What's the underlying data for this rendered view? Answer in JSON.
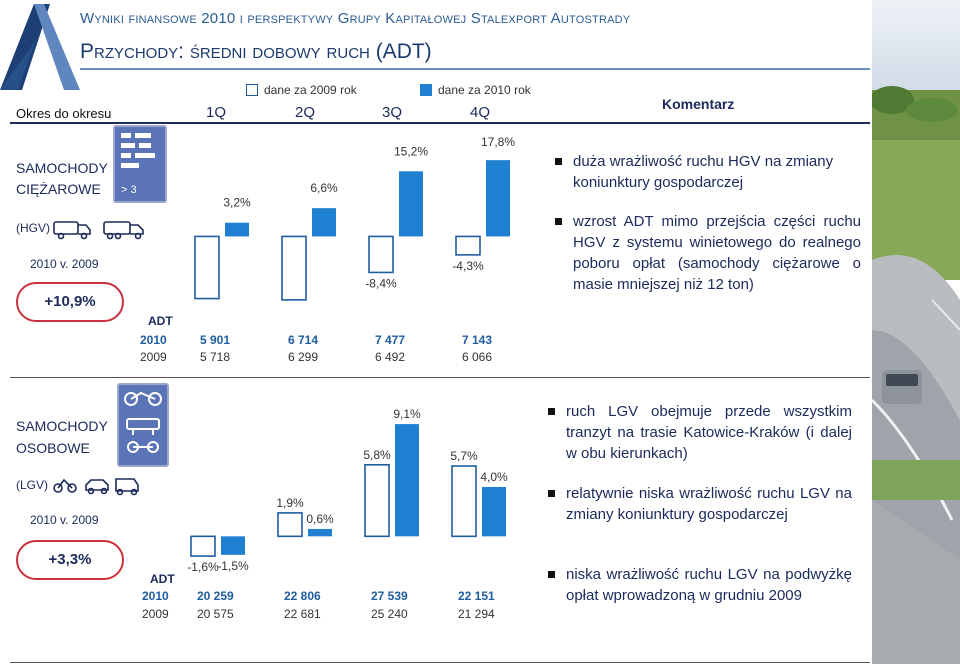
{
  "header": {
    "title_line1": "Wyniki finansowe 2010 i perspektywy Grupy Kapitałowej Stalexport Autostrady",
    "title_line2": "Przychody: średni dobowy ruch (ADT)"
  },
  "legend": {
    "label_2009": "dane za 2009 rok",
    "label_2010": "dane za 2010 rok",
    "color_2009": "#ffffff",
    "color_2010": "#1f7fd0"
  },
  "table_header": {
    "period_label": "Okres do okresu",
    "quarters": [
      "1Q",
      "2Q",
      "3Q",
      "4Q"
    ],
    "comment_label": "Komentarz"
  },
  "hgv": {
    "name_line1": "SAMOCHODY",
    "name_line2": "CIĘŻAROWE",
    "code": "(HGV)",
    "compare": "2010 v. 2009",
    "change": "+10,9%",
    "icon_text": "> 3",
    "adt_label": "ADT",
    "year_2010": "2010",
    "year_2009": "2009",
    "values_2010": [
      "5 901",
      "6 714",
      "7 477",
      "7 143"
    ],
    "values_2009": [
      "5 718",
      "6 299",
      "6 492",
      "6 066"
    ],
    "comments": [
      "duża wrażliwość ruchu HGV na zmiany koniunktury gospodarczej",
      "wzrost ADT mimo przejścia części ruchu HGV z systemu winietowego do realnego poboru opłat (samochody ciężarowe o masie mniejszej niż 12 ton)"
    ]
  },
  "lgv": {
    "name_line1": "SAMOCHODY",
    "name_line2": "OSOBOWE",
    "code": "(LGV)",
    "compare": "2010 v. 2009",
    "change": "+3,3%",
    "adt_label": "ADT",
    "year_2010": "2010",
    "year_2009": "2009",
    "values_2010": [
      "20 259",
      "22 806",
      "27 539",
      "22 151"
    ],
    "values_2009": [
      "20 575",
      "22 681",
      "25 240",
      "21 294"
    ],
    "comments": [
      "ruch LGV obejmuje przede wszystkim tranzyt na trasie Katowice-Kraków (i dalej w obu kierunkach)",
      "relatywnie niska wrażliwość ruchu LGV na zmiany koniunktury gospodarczej",
      "niska wrażliwość ruchu LGV na podwyżkę opłat wprowadzoną w grudniu 2009"
    ]
  },
  "chart_data": [
    {
      "type": "bar",
      "categories": [
        "1Q",
        "2Q",
        "3Q",
        "4Q"
      ],
      "series": [
        {
          "name": "dane za 2009 rok",
          "values": [
            -14.5,
            -14.8,
            -8.4,
            -4.3
          ],
          "labels": [
            "-14,5%",
            "-14,8%",
            "-8,4%",
            "-4,3%"
          ]
        },
        {
          "name": "dane za 2010 rok",
          "values": [
            3.2,
            6.6,
            15.2,
            17.8
          ],
          "labels": [
            "3,2%",
            "6,6%",
            "15,2%",
            "17,8%"
          ]
        }
      ],
      "ylim": [
        -16,
        19
      ]
    },
    {
      "type": "bar",
      "categories": [
        "1Q",
        "2Q",
        "3Q",
        "4Q"
      ],
      "series": [
        {
          "name": "dane za 2009 rok",
          "values": [
            -1.6,
            1.9,
            5.8,
            5.7
          ],
          "labels": [
            "-1,6%",
            "1,9%",
            "5,8%",
            "5,7%"
          ]
        },
        {
          "name": "dane za 2010 rok",
          "values": [
            -1.5,
            0.6,
            9.1,
            4.0
          ],
          "labels": [
            "-1,5%",
            "0,6%",
            "9,1%",
            "4,0%"
          ]
        }
      ],
      "ylim": [
        -2,
        10
      ]
    }
  ]
}
